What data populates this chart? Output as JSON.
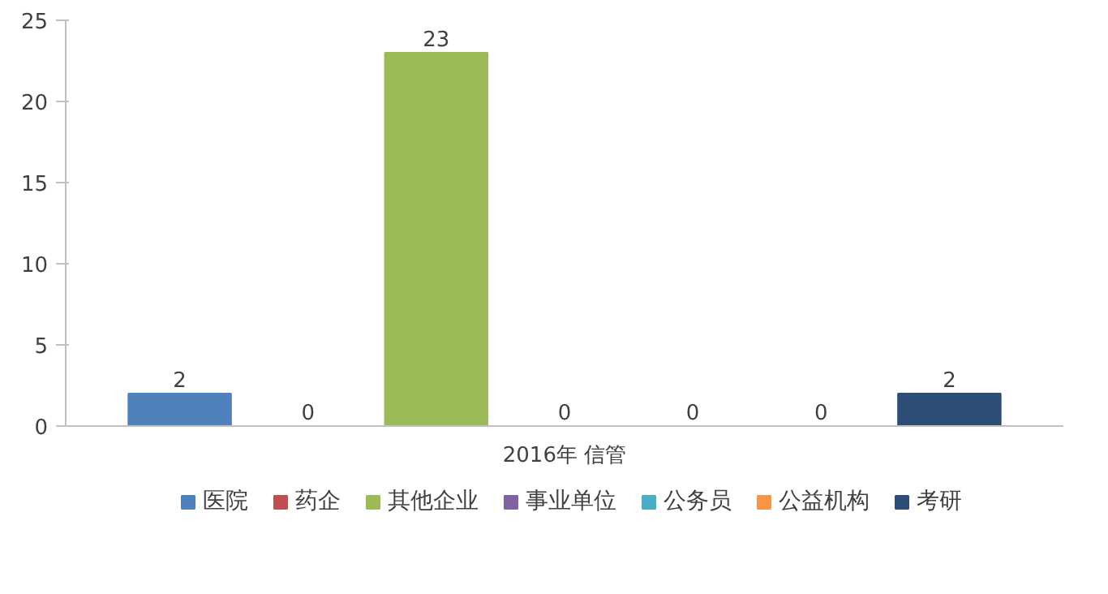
{
  "chart_data": {
    "type": "bar",
    "categories": [
      "2016年 信管"
    ],
    "series": [
      {
        "name": "医院",
        "color": "#4f81bd",
        "values": [
          2
        ]
      },
      {
        "name": "药企",
        "color": "#c0504d",
        "values": [
          0
        ]
      },
      {
        "name": "其他企业",
        "color": "#9bbb59",
        "values": [
          23
        ]
      },
      {
        "name": "事业单位",
        "color": "#8064a2",
        "values": [
          0
        ]
      },
      {
        "name": "公务员",
        "color": "#4bacc6",
        "values": [
          0
        ]
      },
      {
        "name": "公益机构",
        "color": "#f79646",
        "values": [
          0
        ]
      },
      {
        "name": "考研",
        "color": "#2c4d75",
        "values": [
          2
        ]
      }
    ],
    "ylim": [
      0,
      25
    ],
    "yticks": [
      0,
      5,
      10,
      15,
      20,
      25
    ],
    "grid": false,
    "legend": "bottom",
    "data_labels": true
  }
}
